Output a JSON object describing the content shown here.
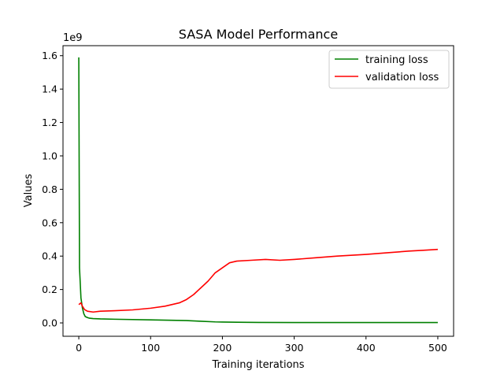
{
  "chart_data": {
    "type": "line",
    "title": "SASA Model Performance",
    "xlabel": "Training iterations",
    "ylabel": "Values",
    "y_scale_label": "1e9",
    "xlim": [
      -22,
      522
    ],
    "ylim": [
      -0.08,
      1.66
    ],
    "x_ticks": [
      0,
      100,
      200,
      300,
      400,
      500
    ],
    "y_ticks": [
      0.0,
      0.2,
      0.4,
      0.6,
      0.8,
      1.0,
      1.2,
      1.4,
      1.6
    ],
    "grid": false,
    "legend_position": "top-right",
    "series": [
      {
        "name": "training loss",
        "color": "#008000",
        "x": [
          0,
          1,
          2,
          3,
          5,
          7,
          9,
          12,
          15,
          20,
          30,
          50,
          100,
          150,
          170,
          190,
          200,
          220,
          250,
          300,
          400,
          500
        ],
        "y": [
          1.59,
          0.33,
          0.24,
          0.15,
          0.09,
          0.055,
          0.038,
          0.032,
          0.028,
          0.026,
          0.024,
          0.022,
          0.018,
          0.014,
          0.01,
          0.006,
          0.005,
          0.004,
          0.003,
          0.002,
          0.002,
          0.002
        ]
      },
      {
        "name": "validation loss",
        "color": "#ff0000",
        "x": [
          0,
          3,
          5,
          8,
          12,
          20,
          30,
          50,
          75,
          100,
          120,
          140,
          150,
          160,
          170,
          180,
          190,
          200,
          210,
          220,
          240,
          260,
          280,
          300,
          330,
          360,
          400,
          430,
          460,
          480,
          500
        ],
        "y": [
          0.11,
          0.12,
          0.1,
          0.08,
          0.07,
          0.065,
          0.07,
          0.073,
          0.078,
          0.088,
          0.1,
          0.12,
          0.14,
          0.17,
          0.21,
          0.25,
          0.3,
          0.33,
          0.36,
          0.37,
          0.375,
          0.38,
          0.375,
          0.38,
          0.39,
          0.4,
          0.41,
          0.42,
          0.43,
          0.435,
          0.44
        ]
      }
    ]
  }
}
